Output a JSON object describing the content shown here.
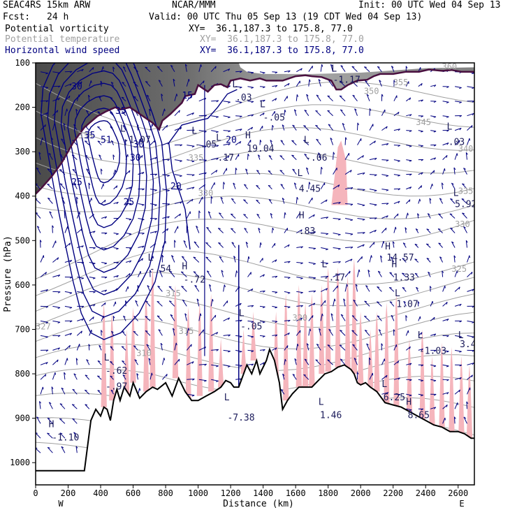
{
  "header": {
    "model": "SEAC4RS 15km ARW",
    "org": "NCAR/MMM",
    "init": "Init: 00 UTC Wed 04 Sep 13",
    "fcst_label": "Fcst:",
    "fcst_value": "24 h",
    "valid": "Valid: 00 UTC Thu 05 Sep 13 (19 CDT Wed 04 Sep 13)"
  },
  "legend": [
    {
      "name": "Potential vorticity",
      "xy": "XY=  36.1,187.3 to 175.8, 77.0",
      "color": "#000000"
    },
    {
      "name": "Potential temperature",
      "xy": "XY=  36.1,187.3 to 175.8, 77.0",
      "color": "#a0a0a0"
    },
    {
      "name": "Horizontal wind speed",
      "xy": "XY=  36.1,187.3 to 175.8, 77.0",
      "color": "#000080"
    }
  ],
  "colors": {
    "pv_fill": "#f5b5bc",
    "stratosphere_dark": "#3a3a3a",
    "theta": "#a0a0a0",
    "wind": "#000080",
    "tropopause": "#4a1040",
    "terrain": "#000000"
  },
  "chart_data": {
    "type": "cross-section",
    "xlabel": "Distance (km)",
    "ylabel": "Pressure (hPa)",
    "xlim": [
      0,
      2700
    ],
    "ylim": [
      1050,
      100
    ],
    "x_ticks": [
      "0",
      "200",
      "400",
      "600",
      "800",
      "1000",
      "1200",
      "1400",
      "1600",
      "1800",
      "2000",
      "2200",
      "2400",
      "2600"
    ],
    "y_ticks": [
      "100",
      "200",
      "300",
      "400",
      "500",
      "600",
      "700",
      "800",
      "900",
      "1000"
    ],
    "ends": {
      "left": "W",
      "right": "E"
    },
    "terrain": [
      [
        0,
        1018
      ],
      [
        300,
        1018
      ],
      [
        340,
        905
      ],
      [
        370,
        880
      ],
      [
        400,
        895
      ],
      [
        420,
        875
      ],
      [
        440,
        880
      ],
      [
        460,
        905
      ],
      [
        480,
        860
      ],
      [
        500,
        835
      ],
      [
        520,
        860
      ],
      [
        545,
        830
      ],
      [
        580,
        850
      ],
      [
        600,
        820
      ],
      [
        640,
        855
      ],
      [
        680,
        840
      ],
      [
        720,
        830
      ],
      [
        750,
        835
      ],
      [
        800,
        820
      ],
      [
        840,
        850
      ],
      [
        880,
        810
      ],
      [
        920,
        840
      ],
      [
        960,
        860
      ],
      [
        1000,
        860
      ],
      [
        1050,
        850
      ],
      [
        1100,
        840
      ],
      [
        1140,
        830
      ],
      [
        1170,
        815
      ],
      [
        1200,
        820
      ],
      [
        1220,
        830
      ],
      [
        1250,
        830
      ],
      [
        1280,
        800
      ],
      [
        1300,
        780
      ],
      [
        1330,
        800
      ],
      [
        1360,
        770
      ],
      [
        1380,
        800
      ],
      [
        1420,
        770
      ],
      [
        1440,
        745
      ],
      [
        1470,
        770
      ],
      [
        1500,
        820
      ],
      [
        1520,
        880
      ],
      [
        1550,
        860
      ],
      [
        1580,
        845
      ],
      [
        1620,
        830
      ],
      [
        1660,
        830
      ],
      [
        1700,
        830
      ],
      [
        1740,
        815
      ],
      [
        1780,
        800
      ],
      [
        1820,
        795
      ],
      [
        1860,
        785
      ],
      [
        1900,
        780
      ],
      [
        1940,
        790
      ],
      [
        1960,
        800
      ],
      [
        1980,
        820
      ],
      [
        2000,
        825
      ],
      [
        2030,
        820
      ],
      [
        2060,
        830
      ],
      [
        2100,
        840
      ],
      [
        2150,
        865
      ],
      [
        2200,
        870
      ],
      [
        2250,
        875
      ],
      [
        2300,
        885
      ],
      [
        2350,
        895
      ],
      [
        2400,
        905
      ],
      [
        2450,
        915
      ],
      [
        2500,
        920
      ],
      [
        2550,
        930
      ],
      [
        2600,
        930
      ],
      [
        2640,
        935
      ],
      [
        2680,
        945
      ],
      [
        2700,
        945
      ]
    ],
    "tropopause": [
      [
        0,
        395
      ],
      [
        40,
        380
      ],
      [
        100,
        355
      ],
      [
        160,
        325
      ],
      [
        230,
        280
      ],
      [
        300,
        245
      ],
      [
        380,
        220
      ],
      [
        430,
        210
      ],
      [
        490,
        200
      ],
      [
        520,
        205
      ],
      [
        580,
        200
      ],
      [
        620,
        210
      ],
      [
        680,
        225
      ],
      [
        720,
        235
      ],
      [
        760,
        250
      ],
      [
        780,
        230
      ],
      [
        830,
        215
      ],
      [
        900,
        190
      ],
      [
        920,
        175
      ],
      [
        980,
        170
      ],
      [
        1000,
        150
      ],
      [
        1020,
        155
      ],
      [
        1060,
        165
      ],
      [
        1100,
        150
      ],
      [
        1140,
        148
      ],
      [
        1180,
        155
      ],
      [
        1200,
        140
      ],
      [
        1260,
        135
      ],
      [
        1320,
        140
      ],
      [
        1380,
        135
      ],
      [
        1420,
        140
      ],
      [
        1480,
        140
      ],
      [
        1520,
        140
      ],
      [
        1600,
        130
      ],
      [
        1660,
        128
      ],
      [
        1700,
        130
      ],
      [
        1760,
        132
      ],
      [
        1820,
        140
      ],
      [
        1850,
        160
      ],
      [
        1880,
        160
      ],
      [
        1920,
        150
      ],
      [
        1980,
        140
      ],
      [
        2040,
        138
      ],
      [
        2080,
        130
      ],
      [
        2120,
        125
      ],
      [
        2200,
        125
      ],
      [
        2280,
        120
      ],
      [
        2360,
        120
      ],
      [
        2420,
        115
      ],
      [
        2500,
        118
      ],
      [
        2560,
        116
      ],
      [
        2620,
        120
      ],
      [
        2680,
        120
      ],
      [
        2700,
        120
      ]
    ],
    "stratosphere_top": [
      [
        0,
        100
      ],
      [
        1250,
        100
      ],
      [
        1260,
        110
      ],
      [
        1300,
        120
      ],
      [
        1400,
        125
      ],
      [
        1500,
        125
      ],
      [
        1700,
        125
      ],
      [
        2000,
        122
      ],
      [
        2400,
        112
      ],
      [
        2700,
        110
      ]
    ],
    "pv_labels": [
      {
        "text": "L",
        "x": 420,
        "p": 770
      },
      {
        "text": "-.62",
        "x": 430,
        "p": 800
      },
      {
        "text": "-.97",
        "x": 430,
        "p": 835
      },
      {
        "text": "L",
        "x": 690,
        "p": 545
      },
      {
        "text": "-.54",
        "x": 700,
        "p": 570
      },
      {
        "text": "H",
        "x": 900,
        "p": 565
      },
      {
        "text": "-.72",
        "x": 910,
        "p": 595
      },
      {
        "text": "L",
        "x": 1250,
        "p": 670
      },
      {
        "text": "-.05",
        "x": 1260,
        "p": 700
      },
      {
        "text": "H",
        "x": 1290,
        "p": 270
      },
      {
        "text": "19.04",
        "x": 1300,
        "p": 300
      },
      {
        "text": "L",
        "x": 1110,
        "p": 275
      },
      {
        "text": ".17",
        "x": 1120,
        "p": 320
      },
      {
        "text": "L",
        "x": 1380,
        "p": 200
      },
      {
        "text": "-.05",
        "x": 1400,
        "p": 230
      },
      {
        "text": "L",
        "x": 1210,
        "p": 155
      },
      {
        "text": ".03",
        "x": 1230,
        "p": 185
      },
      {
        "text": "L",
        "x": 960,
        "p": 260
      },
      {
        "text": "-.05",
        "x": 980,
        "p": 290
      },
      {
        "text": "L",
        "x": 520,
        "p": 255
      },
      {
        "text": "-1.07",
        "x": 540,
        "p": 280
      },
      {
        "text": "H",
        "x": 1620,
        "p": 450
      },
      {
        "text": ".83",
        "x": 1620,
        "p": 485
      },
      {
        "text": "L",
        "x": 1650,
        "p": 280
      },
      {
        "text": "-.06",
        "x": 1660,
        "p": 320
      },
      {
        "text": "L",
        "x": 1610,
        "p": 355
      },
      {
        "text": "4.45",
        "x": 1620,
        "p": 390
      },
      {
        "text": "L",
        "x": 1760,
        "p": 560
      },
      {
        "text": "-.17",
        "x": 1770,
        "p": 590
      },
      {
        "text": "L",
        "x": 1820,
        "p": 120
      },
      {
        "text": "-1.17",
        "x": 1830,
        "p": 145
      },
      {
        "text": "L",
        "x": 1740,
        "p": 870
      },
      {
        "text": "1.46",
        "x": 1750,
        "p": 900
      },
      {
        "text": "L",
        "x": 1160,
        "p": 860
      },
      {
        "text": "-7.38",
        "x": 1180,
        "p": 905
      },
      {
        "text": "H",
        "x": 2150,
        "p": 520
      },
      {
        "text": "14.57",
        "x": 2160,
        "p": 545
      },
      {
        "text": "H",
        "x": 2190,
        "p": 560
      },
      {
        "text": "1.33",
        "x": 2200,
        "p": 590
      },
      {
        "text": "L",
        "x": 2210,
        "p": 625
      },
      {
        "text": "1.07",
        "x": 2220,
        "p": 650
      },
      {
        "text": "L",
        "x": 2130,
        "p": 830
      },
      {
        "text": "6.25",
        "x": 2140,
        "p": 860
      },
      {
        "text": "H",
        "x": 2280,
        "p": 870
      },
      {
        "text": "8.65",
        "x": 2290,
        "p": 900
      },
      {
        "text": "L",
        "x": 2350,
        "p": 720
      },
      {
        "text": "-1.03",
        "x": 2360,
        "p": 755
      },
      {
        "text": "L",
        "x": 2530,
        "p": 250
      },
      {
        "text": ".03",
        "x": 2540,
        "p": 285
      },
      {
        "text": "L",
        "x": 2570,
        "p": 400
      },
      {
        "text": "5.92",
        "x": 2580,
        "p": 425
      },
      {
        "text": "L",
        "x": 2600,
        "p": 720
      },
      {
        "text": "3.42",
        "x": 2610,
        "p": 740
      },
      {
        "text": "H",
        "x": 80,
        "p": 920
      },
      {
        "text": "-1.10",
        "x": 100,
        "p": 950
      }
    ],
    "theta_labels": [
      {
        "text": "335",
        "x": 260,
        "p": 270
      },
      {
        "text": "335",
        "x": 940,
        "p": 320
      },
      {
        "text": "330",
        "x": 1000,
        "p": 400
      },
      {
        "text": "315",
        "x": 800,
        "p": 625
      },
      {
        "text": "315",
        "x": 880,
        "p": 710
      },
      {
        "text": "310",
        "x": 620,
        "p": 760
      },
      {
        "text": "327",
        "x": 0,
        "p": 700
      },
      {
        "text": "320",
        "x": 1580,
        "p": 680
      },
      {
        "text": "355",
        "x": 2200,
        "p": 150
      },
      {
        "text": "350",
        "x": 2020,
        "p": 170
      },
      {
        "text": "345",
        "x": 2340,
        "p": 240
      },
      {
        "text": "340",
        "x": 2600,
        "p": 300
      },
      {
        "text": "335",
        "x": 2600,
        "p": 395
      },
      {
        "text": "330",
        "x": 2580,
        "p": 470
      },
      {
        "text": "325",
        "x": 2560,
        "p": 570
      },
      {
        "text": "360",
        "x": 2500,
        "p": 115
      }
    ],
    "wind_labels": [
      {
        "text": "35",
        "x": 490,
        "p": 215
      },
      {
        "text": "35",
        "x": 300,
        "p": 270
      },
      {
        "text": "51",
        "x": 400,
        "p": 280
      },
      {
        "text": "30",
        "x": 600,
        "p": 290
      },
      {
        "text": "30",
        "x": 580,
        "p": 320
      },
      {
        "text": "25",
        "x": 220,
        "p": 375
      },
      {
        "text": "25",
        "x": 540,
        "p": 420
      },
      {
        "text": "20",
        "x": 830,
        "p": 385
      },
      {
        "text": "20",
        "x": 1170,
        "p": 280
      },
      {
        "text": "15",
        "x": 900,
        "p": 180
      },
      {
        "text": "30",
        "x": 220,
        "p": 160
      }
    ]
  }
}
